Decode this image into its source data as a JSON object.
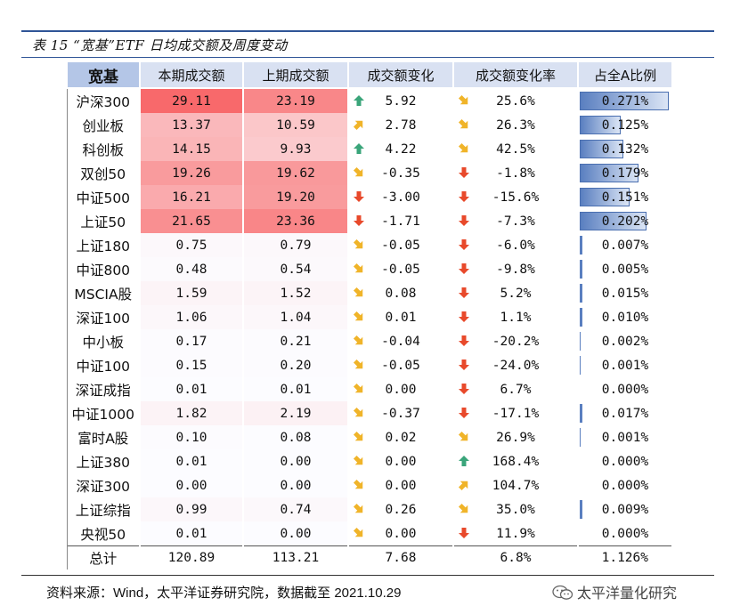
{
  "title": "表 15 “宽基”ETF 日均成交额及周度变动",
  "headers": {
    "name": "宽基",
    "current": "本期成交额",
    "previous": "上期成交额",
    "change": "成交额变化",
    "rate": "成交额变化率",
    "share": "占全A比例"
  },
  "rows": [
    {
      "name": "沪深300",
      "current": "29.11",
      "previous": "23.19",
      "change": "5.92",
      "change_arrow": "up",
      "rate": "25.6%",
      "rate_arrow": "down-right",
      "share": "0.271%",
      "share_value": 0.271
    },
    {
      "name": "创业板",
      "current": "13.37",
      "previous": "10.59",
      "change": "2.78",
      "change_arrow": "up-right",
      "rate": "26.3%",
      "rate_arrow": "down-right",
      "share": "0.125%",
      "share_value": 0.125
    },
    {
      "name": "科创板",
      "current": "14.15",
      "previous": "9.93",
      "change": "4.22",
      "change_arrow": "up",
      "rate": "42.5%",
      "rate_arrow": "down-right",
      "share": "0.132%",
      "share_value": 0.132
    },
    {
      "name": "双创50",
      "current": "19.26",
      "previous": "19.62",
      "change": "-0.35",
      "change_arrow": "down-right",
      "rate": "-1.8%",
      "rate_arrow": "down",
      "share": "0.179%",
      "share_value": 0.179
    },
    {
      "name": "中证500",
      "current": "16.21",
      "previous": "19.20",
      "change": "-3.00",
      "change_arrow": "down",
      "rate": "-15.6%",
      "rate_arrow": "down",
      "share": "0.151%",
      "share_value": 0.151
    },
    {
      "name": "上证50",
      "current": "21.65",
      "previous": "23.36",
      "change": "-1.71",
      "change_arrow": "down",
      "rate": "-7.3%",
      "rate_arrow": "down",
      "share": "0.202%",
      "share_value": 0.202
    },
    {
      "name": "上证180",
      "current": "0.75",
      "previous": "0.79",
      "change": "-0.05",
      "change_arrow": "down-right",
      "rate": "-6.0%",
      "rate_arrow": "down",
      "share": "0.007%",
      "share_value": 0.007
    },
    {
      "name": "中证800",
      "current": "0.48",
      "previous": "0.54",
      "change": "-0.05",
      "change_arrow": "down-right",
      "rate": "-9.8%",
      "rate_arrow": "down",
      "share": "0.005%",
      "share_value": 0.005
    },
    {
      "name": "MSCIA股",
      "current": "1.59",
      "previous": "1.52",
      "change": "0.08",
      "change_arrow": "down-right",
      "rate": "5.2%",
      "rate_arrow": "down",
      "share": "0.015%",
      "share_value": 0.015
    },
    {
      "name": "深证100",
      "current": "1.06",
      "previous": "1.04",
      "change": "0.01",
      "change_arrow": "down-right",
      "rate": "1.1%",
      "rate_arrow": "down",
      "share": "0.010%",
      "share_value": 0.01
    },
    {
      "name": "中小板",
      "current": "0.17",
      "previous": "0.21",
      "change": "-0.04",
      "change_arrow": "down-right",
      "rate": "-20.2%",
      "rate_arrow": "down",
      "share": "0.002%",
      "share_value": 0.002
    },
    {
      "name": "中证100",
      "current": "0.15",
      "previous": "0.20",
      "change": "-0.05",
      "change_arrow": "down-right",
      "rate": "-24.0%",
      "rate_arrow": "down",
      "share": "0.001%",
      "share_value": 0.001
    },
    {
      "name": "深证成指",
      "current": "0.01",
      "previous": "0.01",
      "change": "0.00",
      "change_arrow": "down-right",
      "rate": "6.7%",
      "rate_arrow": "down",
      "share": "0.000%",
      "share_value": 0.0
    },
    {
      "name": "中证1000",
      "current": "1.82",
      "previous": "2.19",
      "change": "-0.37",
      "change_arrow": "down-right",
      "rate": "-17.1%",
      "rate_arrow": "down",
      "share": "0.017%",
      "share_value": 0.017
    },
    {
      "name": "富时A股",
      "current": "0.10",
      "previous": "0.08",
      "change": "0.02",
      "change_arrow": "down-right",
      "rate": "26.9%",
      "rate_arrow": "down-right",
      "share": "0.001%",
      "share_value": 0.001
    },
    {
      "name": "上证380",
      "current": "0.01",
      "previous": "0.00",
      "change": "0.00",
      "change_arrow": "down-right",
      "rate": "168.4%",
      "rate_arrow": "up",
      "share": "0.000%",
      "share_value": 0.0
    },
    {
      "name": "深证300",
      "current": "0.00",
      "previous": "0.00",
      "change": "0.00",
      "change_arrow": "down-right",
      "rate": "104.7%",
      "rate_arrow": "up-right",
      "share": "0.000%",
      "share_value": 0.0
    },
    {
      "name": "上证综指",
      "current": "0.99",
      "previous": "0.74",
      "change": "0.26",
      "change_arrow": "down-right",
      "rate": "35.0%",
      "rate_arrow": "down-right",
      "share": "0.009%",
      "share_value": 0.009
    },
    {
      "name": "央视50",
      "current": "0.01",
      "previous": "0.00",
      "change": "0.00",
      "change_arrow": "down-right",
      "rate": "11.9%",
      "rate_arrow": "down",
      "share": "0.000%",
      "share_value": 0.0
    }
  ],
  "total": {
    "name": "总计",
    "current": "120.89",
    "previous": "113.21",
    "change": "7.68",
    "rate": "6.8%",
    "share": "1.126%"
  },
  "share_max": 0.271,
  "source": "资料来源：Wind，太平洋证券研究院，数据截至 2021.10.29",
  "watermark": "太平洋量化研究",
  "colors": {
    "header_bg": "#d9e1f2",
    "header_name_bg": "#b4c6e7",
    "heat_max": "#f8696b",
    "heat_min": "#fcfcff",
    "bar": "#5a7fc0",
    "arrow_up": "#3aa57a",
    "arrow_side": "#f0b429",
    "arrow_down": "#e8492b",
    "rule": "#2f5597"
  }
}
